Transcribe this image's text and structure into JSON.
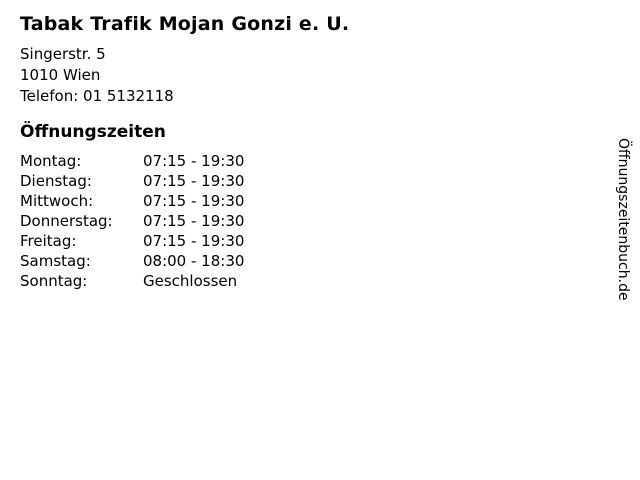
{
  "business": {
    "name": "Tabak Trafik Mojan Gonzi e. U.",
    "address_line1": "Singerstr. 5",
    "address_line2": "1010 Wien",
    "phone_line": "Telefon: 01 5132118"
  },
  "hours": {
    "heading": "Öffnungszeiten",
    "rows": [
      {
        "day": "Montag:",
        "time": "07:15 - 19:30"
      },
      {
        "day": "Dienstag:",
        "time": "07:15 - 19:30"
      },
      {
        "day": "Mittwoch:",
        "time": "07:15 - 19:30"
      },
      {
        "day": "Donnerstag:",
        "time": "07:15 - 19:30"
      },
      {
        "day": "Freitag:",
        "time": "07:15 - 19:30"
      },
      {
        "day": "Samstag:",
        "time": "08:00 - 18:30"
      },
      {
        "day": "Sonntag:",
        "time": "Geschlossen"
      }
    ]
  },
  "watermark": {
    "text": "Öffnungszeitenbuch.de"
  },
  "colors": {
    "background": "#ffffff",
    "text": "#000000"
  }
}
